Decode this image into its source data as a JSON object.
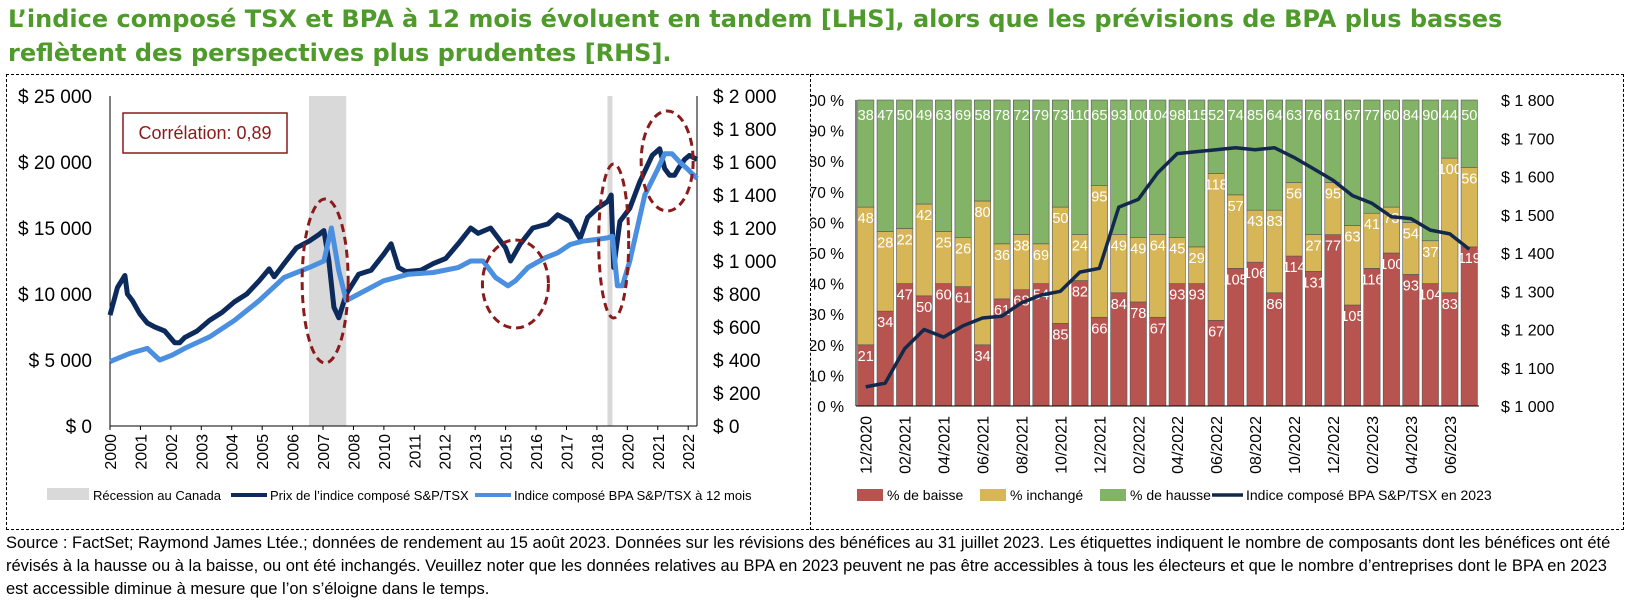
{
  "title": "L’indice composé TSX et BPA à 12 mois évoluent en tandem [LHS], alors que les prévisions de BPA plus basses reflètent des perspectives plus prudentes [RHS].",
  "source_note": "Source : FactSet; Raymond James Ltée.; données de rendement au 15 août 2023. Données sur les révisions des bénéfices au 31 juillet 2023. Les étiquettes indiquent le nombre de composants dont les bénéfices ont été révisés à la hausse ou à la baisse, ou ont été inchangés. Veuillez noter que les données relatives au BPA en 2023 peuvent ne pas être accessibles à tous les électeurs et que le nombre d’entreprises dont le BPA en 2023 est accessible diminue à mesure que l’on s’éloigne dans le temps.",
  "colors": {
    "title": "#4e9a2a",
    "tsx_price": "#0d2a5c",
    "eps": "#4a8fe0",
    "recession": "#d9d9d9",
    "circle": "#8b1a1a",
    "decline": "#b85450",
    "unchanged": "#d6b656",
    "rise": "#82b366",
    "eps2023": "#13294b"
  },
  "chart_data": [
    {
      "type": "line",
      "annotation": "Corrélation: 0,89",
      "x_ticks": [
        "2000",
        "2001",
        "2002",
        "2003",
        "2004",
        "2005",
        "2006",
        "2007",
        "2008",
        "2010",
        "2011",
        "2012",
        "2013",
        "2015",
        "2016",
        "2017",
        "2018",
        "2020",
        "2021",
        "2022"
      ],
      "y_left_ticks": [
        "$ 0",
        "$ 5 000",
        "$ 10 000",
        "$ 15 000",
        "$ 20 000",
        "$ 25 000"
      ],
      "y_right_ticks": [
        "$ 0",
        "$ 200",
        "$ 400",
        "$ 600",
        "$ 800",
        "$ 1 000",
        "$ 1 200",
        "$ 1 400",
        "$ 1 600",
        "$ 1 800",
        "$ 2 000"
      ],
      "ylim_left": [
        0,
        25000
      ],
      "ylim_right": [
        0,
        2000
      ],
      "xlim": [
        2000.0,
        2023.6
      ],
      "legend": [
        "Récession au Canada",
        "Prix de l’indice composé S&P/TSX",
        "Indice composé BPA S&P/TSX à 12 mois"
      ],
      "recessions": [
        [
          2008.0,
          2009.5
        ],
        [
          2020.0,
          2020.2
        ]
      ],
      "series": [
        {
          "name": "Prix de l’indice composé S&P/TSX",
          "axis": "left",
          "x": [
            2000.0,
            2000.3,
            2000.6,
            2000.7,
            2000.9,
            2001.2,
            2001.5,
            2001.8,
            2002.2,
            2002.6,
            2002.8,
            2003.0,
            2003.5,
            2004.0,
            2004.5,
            2005.0,
            2005.5,
            2006.0,
            2006.4,
            2006.6,
            2007.0,
            2007.5,
            2008.0,
            2008.4,
            2008.6,
            2008.8,
            2009.0,
            2009.2,
            2009.5,
            2010.0,
            2010.5,
            2011.0,
            2011.3,
            2011.6,
            2011.9,
            2012.5,
            2013.0,
            2013.5,
            2014.0,
            2014.5,
            2014.8,
            2015.3,
            2015.9,
            2016.1,
            2016.5,
            2017.0,
            2017.6,
            2018.0,
            2018.5,
            2018.9,
            2019.2,
            2019.6,
            2020.0,
            2020.15,
            2020.25,
            2020.5,
            2020.9,
            2021.3,
            2021.8,
            2022.1,
            2022.3,
            2022.5,
            2022.7,
            2022.85,
            2023.1,
            2023.3,
            2023.6
          ],
          "y": [
            8400,
            10500,
            11400,
            10000,
            9500,
            8500,
            7800,
            7500,
            7200,
            6300,
            6300,
            6700,
            7200,
            8000,
            8600,
            9400,
            10000,
            11000,
            11900,
            11300,
            12300,
            13500,
            14000,
            14500,
            14800,
            12500,
            9000,
            8200,
            10000,
            11500,
            11800,
            13000,
            13800,
            12000,
            11700,
            11800,
            12300,
            12700,
            13800,
            15000,
            14600,
            15000,
            13500,
            12500,
            13800,
            15000,
            15300,
            16000,
            15500,
            14200,
            15800,
            16500,
            17000,
            17500,
            12000,
            15500,
            16500,
            18500,
            20500,
            21000,
            19500,
            19000,
            19000,
            19500,
            20200,
            20500,
            20200
          ]
        },
        {
          "name": "Indice composé BPA S&P/TSX à 12 mois",
          "axis": "right",
          "x": [
            2000.0,
            2000.8,
            2001.5,
            2002.0,
            2002.5,
            2003.0,
            2004.0,
            2005.0,
            2006.0,
            2007.0,
            2008.0,
            2008.6,
            2008.9,
            2009.2,
            2009.5,
            2010.0,
            2011.0,
            2012.0,
            2013.0,
            2014.0,
            2014.5,
            2015.0,
            2015.5,
            2016.0,
            2016.3,
            2016.8,
            2017.5,
            2018.0,
            2018.5,
            2019.0,
            2019.5,
            2020.0,
            2020.2,
            2020.4,
            2020.6,
            2020.9,
            2021.5,
            2022.0,
            2022.3,
            2022.6,
            2022.9,
            2023.2,
            2023.6
          ],
          "y": [
            390,
            440,
            470,
            400,
            430,
            470,
            540,
            640,
            760,
            900,
            960,
            1000,
            1200,
            940,
            760,
            800,
            880,
            920,
            930,
            960,
            1000,
            1000,
            900,
            850,
            880,
            960,
            1020,
            1050,
            1100,
            1120,
            1130,
            1140,
            1150,
            850,
            850,
            1000,
            1400,
            1550,
            1650,
            1650,
            1600,
            1560,
            1500
          ]
        }
      ]
    },
    {
      "type": "bar",
      "stacked": true,
      "percent": true,
      "categories": [
        "12/2020",
        "01/2021",
        "02/2021",
        "03/2021",
        "04/2021",
        "05/2021",
        "06/2021",
        "07/2021",
        "08/2021",
        "09/2021",
        "10/2021",
        "11/2021",
        "12/2021",
        "01/2022",
        "02/2022",
        "03/2022",
        "04/2022",
        "05/2022",
        "06/2022",
        "07/2022",
        "08/2022",
        "09/2022",
        "10/2022",
        "11/2022",
        "12/2022",
        "01/2023",
        "02/2023",
        "03/2023",
        "04/2023",
        "05/2023",
        "06/2023",
        "07/2023"
      ],
      "x_tick_labels": [
        "12/2020",
        "",
        "02/2021",
        "",
        "04/2021",
        "",
        "06/2021",
        "",
        "08/2021",
        "",
        "10/2021",
        "",
        "12/2021",
        "",
        "02/2022",
        "",
        "04/2022",
        "",
        "06/2022",
        "",
        "08/2022",
        "",
        "10/2022",
        "",
        "12/2022",
        "",
        "02/2023",
        "",
        "04/2023",
        "",
        "06/2023",
        ""
      ],
      "y_left_ticks": [
        "0 %",
        "10 %",
        "20 %",
        "30 %",
        "40 %",
        "50 %",
        "60 %",
        "70 %",
        "80 %",
        "90 %",
        "100 %"
      ],
      "y_right_ticks": [
        "$ 1 000",
        "$ 1 100",
        "$ 1 200",
        "$ 1 300",
        "$ 1 400",
        "$ 1 500",
        "$ 1 600",
        "$ 1 700",
        "$ 1 800"
      ],
      "ylim_left": [
        0,
        100
      ],
      "ylim_right": [
        1000,
        1800
      ],
      "legend": [
        "% de baisse",
        "% inchangé",
        "% de hausse",
        "Indice composé BPA S&P/TSX en 2023"
      ],
      "series": [
        {
          "name": "% de baisse",
          "values": [
            20,
            31,
            40,
            36,
            40,
            39,
            20,
            35,
            38,
            40,
            27,
            41,
            29,
            37,
            34,
            29,
            40,
            40,
            28,
            45,
            47,
            37,
            49,
            44,
            56,
            33,
            45,
            50,
            43,
            40,
            37,
            52
          ],
          "labels": [
            21,
            34,
            47,
            50,
            60,
            61,
            34,
            61,
            68,
            54,
            85,
            82,
            66,
            84,
            78,
            67,
            93,
            93,
            67,
            105,
            106,
            86,
            114,
            131,
            77,
            105,
            116,
            100,
            93,
            104,
            83,
            119
          ]
        },
        {
          "name": "% inchangé",
          "values": [
            45,
            26,
            18,
            30,
            17,
            16,
            47,
            18,
            18,
            13,
            38,
            15,
            43,
            19,
            21,
            27,
            15,
            12,
            48,
            24,
            17,
            27,
            24,
            12,
            17,
            26,
            18,
            15,
            17,
            14,
            44,
            26
          ],
          "labels": [
            48,
            28,
            22,
            42,
            25,
            26,
            80,
            36,
            38,
            69,
            50,
            24,
            95,
            49,
            49,
            64,
            45,
            29,
            118,
            57,
            43,
            83,
            56,
            27,
            95,
            63,
            41,
            73,
            54,
            37,
            100,
            56
          ]
        },
        {
          "name": "% de hausse",
          "values": [
            35,
            43,
            42,
            34,
            43,
            45,
            33,
            47,
            44,
            47,
            35,
            44,
            28,
            44,
            45,
            44,
            45,
            48,
            24,
            31,
            36,
            36,
            27,
            44,
            27,
            41,
            37,
            35,
            40,
            46,
            19,
            22
          ],
          "labels": [
            38,
            47,
            50,
            49,
            63,
            69,
            58,
            78,
            72,
            79,
            73,
            110,
            65,
            93,
            100,
            104,
            98,
            115,
            52,
            74,
            85,
            64,
            63,
            76,
            61,
            67,
            77,
            60,
            84,
            90,
            44,
            50
          ]
        },
        {
          "name": "Indice composé BPA S&P/TSX en 2023",
          "axis": "right",
          "values": [
            1050,
            1060,
            1150,
            1200,
            1180,
            1210,
            1230,
            1235,
            1270,
            1290,
            1300,
            1350,
            1360,
            1520,
            1540,
            1610,
            1660,
            1665,
            1670,
            1675,
            1670,
            1675,
            1650,
            1620,
            1590,
            1550,
            1530,
            1495,
            1490,
            1460,
            1450,
            1410
          ]
        }
      ]
    }
  ]
}
